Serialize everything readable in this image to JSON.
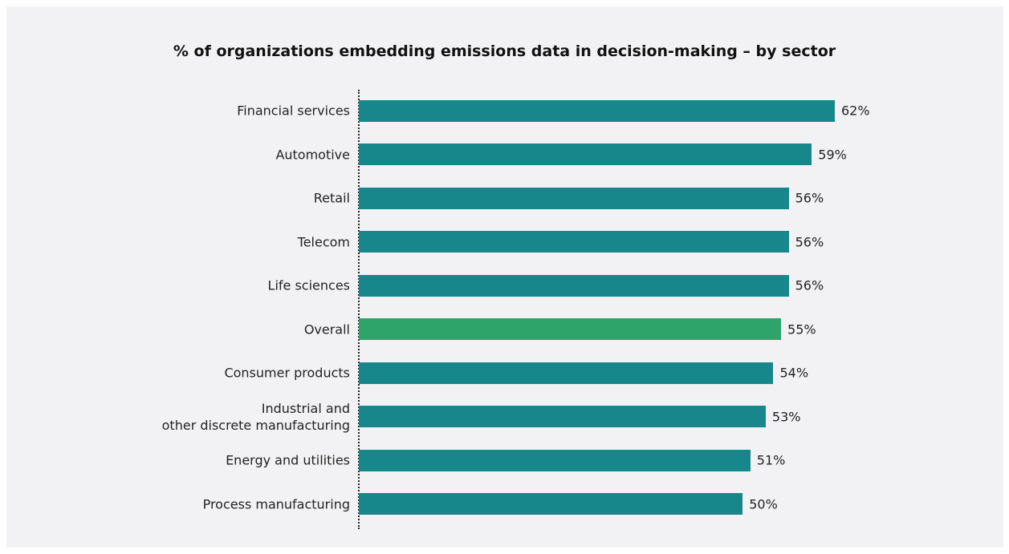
{
  "chart_data": {
    "type": "bar",
    "orientation": "horizontal",
    "title": "% of organizations embedding emissions data in decision-making – by sector",
    "categories": [
      "Financial services",
      "Automotive",
      "Retail",
      "Telecom",
      "Life sciences",
      "Overall",
      "Consumer products",
      "Industrial and\nother discrete manufacturing",
      "Energy and utilities",
      "Process manufacturing"
    ],
    "values": [
      62,
      59,
      56,
      56,
      56,
      55,
      54,
      53,
      51,
      50
    ],
    "value_labels": [
      "62%",
      "59%",
      "56%",
      "56%",
      "56%",
      "55%",
      "54%",
      "53%",
      "51%",
      "50%"
    ],
    "colors": [
      "#17878c",
      "#17878c",
      "#17878c",
      "#17878c",
      "#17878c",
      "#2ea36a",
      "#17878c",
      "#17878c",
      "#17878c",
      "#17878c"
    ],
    "xlim": [
      0,
      62
    ]
  }
}
